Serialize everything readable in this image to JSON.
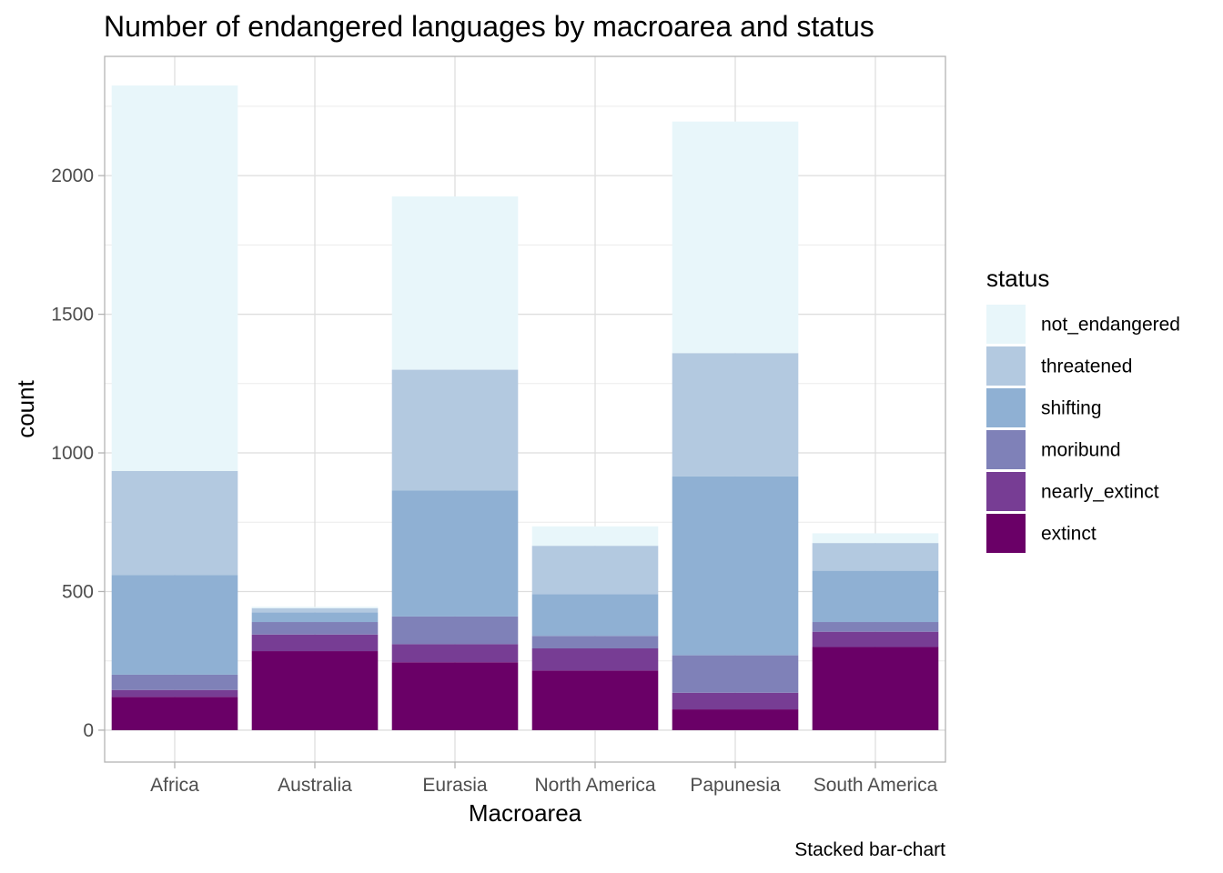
{
  "chart_data": {
    "type": "bar",
    "stacked": true,
    "title": "Number of endangered languages by macroarea and status",
    "xlabel": "Macroarea",
    "ylabel": "count",
    "caption": "Stacked bar-chart",
    "categories": [
      "Africa",
      "Australia",
      "Eurasia",
      "North America",
      "Papunesia",
      "South America"
    ],
    "ylim": [
      -115,
      2430
    ],
    "yticks": [
      0,
      500,
      1000,
      1500,
      2000
    ],
    "ytick_labels": [
      "0",
      "500",
      "1000",
      "1500",
      "2000"
    ],
    "grid": true,
    "legend": {
      "title": "status",
      "position": "right"
    },
    "series": [
      {
        "name": "extinct",
        "color": "#6a0067",
        "values": [
          120,
          285,
          245,
          215,
          75,
          300
        ]
      },
      {
        "name": "nearly_extinct",
        "color": "#773d94",
        "values": [
          25,
          60,
          65,
          80,
          60,
          55
        ]
      },
      {
        "name": "moribund",
        "color": "#7f81b8",
        "values": [
          55,
          45,
          100,
          45,
          135,
          35
        ]
      },
      {
        "name": "shifting",
        "color": "#8fb0d3",
        "values": [
          360,
          35,
          455,
          150,
          645,
          185
        ]
      },
      {
        "name": "threatened",
        "color": "#b3c9e0",
        "values": [
          375,
          15,
          435,
          175,
          445,
          100
        ]
      },
      {
        "name": "not_endangered",
        "color": "#e8f6fa",
        "values": [
          1390,
          5,
          625,
          70,
          835,
          35
        ]
      }
    ]
  }
}
